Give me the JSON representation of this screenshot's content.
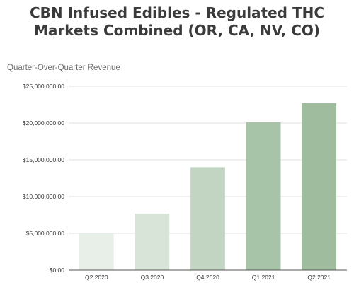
{
  "title_lines": [
    "CBN Infused Edibles - Regulated THC",
    "Markets Combined (OR, CA, NV, CO)"
  ],
  "chart_data": {
    "type": "bar",
    "subtitle": "Quarter-Over-Quarter Revenue",
    "categories": [
      "Q2 2020",
      "Q3 2020",
      "Q4 2020",
      "Q1 2021",
      "Q2 2021"
    ],
    "values": [
      5000000,
      7700000,
      14000000,
      20100000,
      22700000
    ],
    "ylim": [
      0,
      25000000
    ],
    "yticks": [
      0,
      5000000,
      10000000,
      15000000,
      20000000,
      25000000
    ],
    "ytick_labels": [
      "$0.00",
      "$5,000,000.00",
      "$10,000,000.00",
      "$15,000,000.00",
      "$20,000,000.00",
      "$25,000,000.00"
    ],
    "bar_colors": [
      "#e8eee8",
      "#d9e4d9",
      "#c2d4c2",
      "#a8c4a8",
      "#9fbc9f"
    ],
    "grid": true,
    "legend": "none"
  }
}
